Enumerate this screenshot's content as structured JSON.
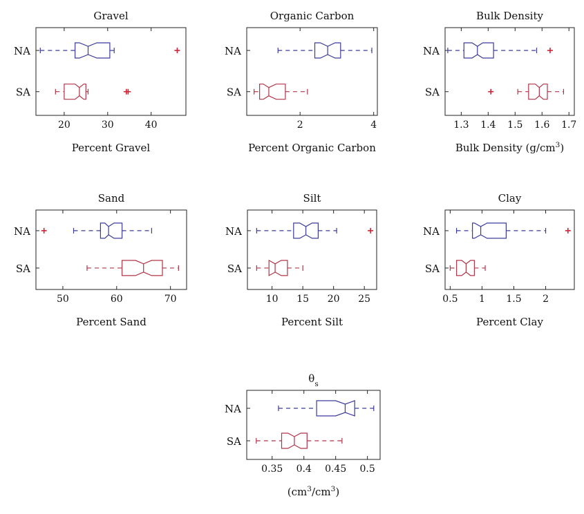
{
  "colors": {
    "NA": "#3b3b9a",
    "SA": "#b23347",
    "axis": "#222222"
  },
  "chart_data": [
    {
      "type": "boxplot",
      "title": "Gravel",
      "title_parts": [
        {
          "t": "Gravel",
          "s": "normal"
        }
      ],
      "xlabel_parts": [
        {
          "t": "Percent Gravel",
          "s": "normal"
        }
      ],
      "xlim": [
        13.5,
        48
      ],
      "xticks": [
        20,
        30,
        40
      ],
      "categories": [
        "NA",
        "SA"
      ],
      "series": [
        {
          "name": "NA",
          "whisker_low": 14.5,
          "q1": 22.5,
          "median": 25.5,
          "q3": 30.5,
          "whisker_high": 31.5,
          "notch": [
            23.5,
            27.5
          ],
          "outliers": [
            46
          ]
        },
        {
          "name": "SA",
          "whisker_low": 18,
          "q1": 20,
          "median": 23.5,
          "q3": 25,
          "whisker_high": 25.5,
          "notch": [
            22.5,
            24.5
          ],
          "outliers": [
            34.3,
            34.7
          ]
        }
      ]
    },
    {
      "type": "boxplot",
      "title": "Organic Carbon",
      "title_parts": [
        {
          "t": "Organic Carbon",
          "s": "normal"
        }
      ],
      "xlabel_parts": [
        {
          "t": "Percent Organic Carbon",
          "s": "normal"
        }
      ],
      "xlim": [
        0.55,
        4.1
      ],
      "xticks": [
        2,
        4
      ],
      "categories": [
        "NA",
        "SA"
      ],
      "series": [
        {
          "name": "NA",
          "whisker_low": 1.4,
          "q1": 2.4,
          "median": 2.75,
          "q3": 3.1,
          "whisker_high": 3.95,
          "notch": [
            2.55,
            2.95
          ],
          "outliers": []
        },
        {
          "name": "SA",
          "whisker_low": 0.75,
          "q1": 0.9,
          "median": 1.15,
          "q3": 1.6,
          "whisker_high": 2.2,
          "notch": [
            1.0,
            1.35
          ],
          "outliers": []
        }
      ]
    },
    {
      "type": "boxplot",
      "title": "Bulk Density",
      "title_parts": [
        {
          "t": "Bulk Density",
          "s": "normal"
        }
      ],
      "xlabel_parts": [
        {
          "t": "Bulk Density (g/cm",
          "s": "normal"
        },
        {
          "t": "3",
          "s": "sup"
        },
        {
          "t": ")",
          "s": "normal"
        }
      ],
      "xlim": [
        1.24,
        1.72
      ],
      "xticks": [
        1.3,
        1.4,
        1.5,
        1.6,
        1.7
      ],
      "categories": [
        "NA",
        "SA"
      ],
      "series": [
        {
          "name": "NA",
          "whisker_low": 1.25,
          "q1": 1.31,
          "median": 1.36,
          "q3": 1.42,
          "whisker_high": 1.58,
          "notch": [
            1.34,
            1.38
          ],
          "outliers": [
            1.63
          ]
        },
        {
          "name": "SA",
          "whisker_low": 1.51,
          "q1": 1.55,
          "median": 1.59,
          "q3": 1.62,
          "whisker_high": 1.68,
          "notch": [
            1.575,
            1.605
          ],
          "outliers": [
            1.41
          ]
        }
      ]
    },
    {
      "type": "boxplot",
      "title": "Sand",
      "title_parts": [
        {
          "t": "Sand",
          "s": "normal"
        }
      ],
      "xlabel_parts": [
        {
          "t": "Percent Sand",
          "s": "normal"
        }
      ],
      "xlim": [
        45,
        73
      ],
      "xticks": [
        50,
        60,
        70
      ],
      "categories": [
        "NA",
        "SA"
      ],
      "series": [
        {
          "name": "NA",
          "whisker_low": 52,
          "q1": 57,
          "median": 58.5,
          "q3": 61,
          "whisker_high": 66.5,
          "notch": [
            57.8,
            59.5
          ],
          "outliers": [
            46.5
          ]
        },
        {
          "name": "SA",
          "whisker_low": 54.5,
          "q1": 61,
          "median": 65,
          "q3": 68.5,
          "whisker_high": 71.5,
          "notch": [
            63.5,
            66.5
          ],
          "outliers": []
        }
      ]
    },
    {
      "type": "boxplot",
      "title": "Silt",
      "title_parts": [
        {
          "t": "Silt",
          "s": "normal"
        }
      ],
      "xlabel_parts": [
        {
          "t": "Percent Silt",
          "s": "normal"
        }
      ],
      "xlim": [
        6,
        27
      ],
      "xticks": [
        10,
        15,
        20,
        25
      ],
      "categories": [
        "NA",
        "SA"
      ],
      "series": [
        {
          "name": "NA",
          "whisker_low": 7.5,
          "q1": 13.5,
          "median": 15.5,
          "q3": 17.5,
          "whisker_high": 20.5,
          "notch": [
            14.5,
            16.5
          ],
          "outliers": [
            26
          ]
        },
        {
          "name": "SA",
          "whisker_low": 7.5,
          "q1": 9.5,
          "median": 10.5,
          "q3": 12.5,
          "whisker_high": 15,
          "notch": [
            9.5,
            11.5
          ],
          "outliers": []
        }
      ]
    },
    {
      "type": "boxplot",
      "title": "Clay",
      "title_parts": [
        {
          "t": "Clay",
          "s": "normal"
        }
      ],
      "xlabel_parts": [
        {
          "t": "Percent Clay",
          "s": "normal"
        }
      ],
      "xlim": [
        0.42,
        2.45
      ],
      "xticks": [
        0.5,
        1,
        1.5,
        2
      ],
      "categories": [
        "NA",
        "SA"
      ],
      "series": [
        {
          "name": "NA",
          "whisker_low": 0.6,
          "q1": 0.85,
          "median": 0.98,
          "q3": 1.38,
          "whisker_high": 2.0,
          "notch": [
            0.88,
            1.08
          ],
          "outliers": [
            2.35
          ]
        },
        {
          "name": "SA",
          "whisker_low": 0.5,
          "q1": 0.6,
          "median": 0.75,
          "q3": 0.88,
          "whisker_high": 1.05,
          "notch": [
            0.68,
            0.82
          ],
          "outliers": []
        }
      ]
    },
    {
      "type": "boxplot",
      "title": "θs",
      "title_parts": [
        {
          "t": "θ",
          "s": "normal"
        },
        {
          "t": "s",
          "s": "sub"
        }
      ],
      "xlabel_parts": [
        {
          "t": "(cm",
          "s": "normal"
        },
        {
          "t": "3",
          "s": "sup"
        },
        {
          "t": "/cm",
          "s": "normal"
        },
        {
          "t": "3",
          "s": "sup"
        },
        {
          "t": ")",
          "s": "normal"
        }
      ],
      "xlim": [
        0.31,
        0.52
      ],
      "xticks": [
        0.35,
        0.4,
        0.45,
        0.5
      ],
      "categories": [
        "NA",
        "SA"
      ],
      "series": [
        {
          "name": "NA",
          "whisker_low": 0.36,
          "q1": 0.42,
          "median": 0.465,
          "q3": 0.48,
          "whisker_high": 0.51,
          "notch": [
            0.45,
            0.48
          ],
          "outliers": []
        },
        {
          "name": "SA",
          "whisker_low": 0.325,
          "q1": 0.365,
          "median": 0.385,
          "q3": 0.405,
          "whisker_high": 0.46,
          "notch": [
            0.375,
            0.395
          ],
          "outliers": []
        }
      ]
    }
  ]
}
